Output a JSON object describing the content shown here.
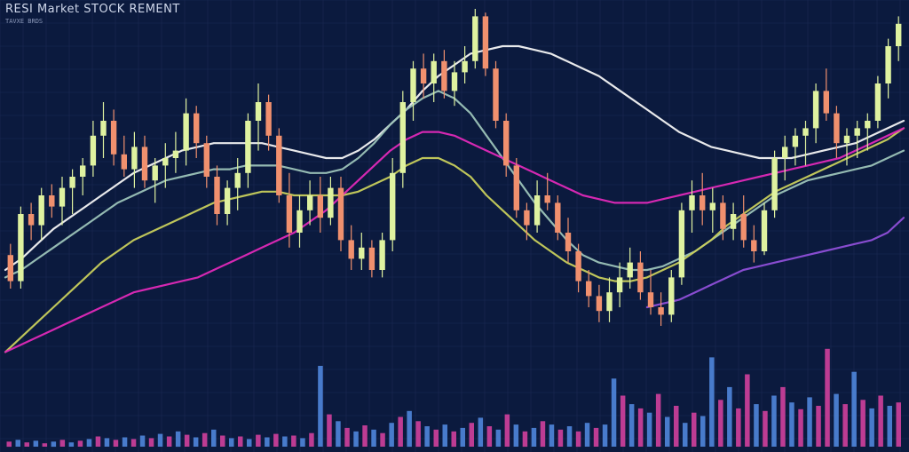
{
  "header": {
    "title": "RESI Market STOCK REMENT",
    "subtitle": "TAVXE BRDS"
  },
  "colors": {
    "background": "#0b1a3e",
    "grid": "#1b2b55",
    "candle_up": "#dff2a0",
    "candle_down": "#f0906e",
    "ma_white": "#f4f4f4",
    "ma_teal": "#2e8fa0",
    "ma_sage": "#9cc3b8",
    "ma_yellow": "#c8cf5c",
    "ma_magenta": "#e029b8",
    "ma_purple": "#8f4fd8",
    "ma_red": "#b01a3e",
    "volume_blue": "#4f86dc",
    "volume_pink": "#d0409c"
  },
  "chart_data": {
    "type": "candlestick",
    "ylim": [
      0,
      100
    ],
    "grid": true,
    "candles": [
      {
        "o": 34,
        "h": 37,
        "l": 25,
        "c": 27
      },
      {
        "o": 27,
        "h": 47,
        "l": 25,
        "c": 45
      },
      {
        "o": 45,
        "h": 48,
        "l": 38,
        "c": 42
      },
      {
        "o": 42,
        "h": 52,
        "l": 38,
        "c": 50
      },
      {
        "o": 50,
        "h": 53,
        "l": 44,
        "c": 47
      },
      {
        "o": 47,
        "h": 55,
        "l": 42,
        "c": 52
      },
      {
        "o": 52,
        "h": 57,
        "l": 45,
        "c": 55
      },
      {
        "o": 55,
        "h": 60,
        "l": 50,
        "c": 58
      },
      {
        "o": 58,
        "h": 70,
        "l": 55,
        "c": 66
      },
      {
        "o": 66,
        "h": 75,
        "l": 60,
        "c": 70
      },
      {
        "o": 70,
        "h": 73,
        "l": 58,
        "c": 61
      },
      {
        "o": 61,
        "h": 66,
        "l": 55,
        "c": 57
      },
      {
        "o": 57,
        "h": 67,
        "l": 52,
        "c": 63
      },
      {
        "o": 63,
        "h": 66,
        "l": 52,
        "c": 54
      },
      {
        "o": 54,
        "h": 60,
        "l": 48,
        "c": 58
      },
      {
        "o": 58,
        "h": 64,
        "l": 52,
        "c": 60
      },
      {
        "o": 60,
        "h": 67,
        "l": 56,
        "c": 62
      },
      {
        "o": 62,
        "h": 76,
        "l": 58,
        "c": 72
      },
      {
        "o": 72,
        "h": 74,
        "l": 60,
        "c": 64
      },
      {
        "o": 64,
        "h": 66,
        "l": 52,
        "c": 55
      },
      {
        "o": 55,
        "h": 58,
        "l": 42,
        "c": 45
      },
      {
        "o": 45,
        "h": 54,
        "l": 42,
        "c": 52
      },
      {
        "o": 52,
        "h": 60,
        "l": 46,
        "c": 56
      },
      {
        "o": 56,
        "h": 72,
        "l": 52,
        "c": 70
      },
      {
        "o": 70,
        "h": 80,
        "l": 62,
        "c": 75
      },
      {
        "o": 75,
        "h": 77,
        "l": 62,
        "c": 66
      },
      {
        "o": 66,
        "h": 68,
        "l": 48,
        "c": 50
      },
      {
        "o": 50,
        "h": 56,
        "l": 36,
        "c": 40
      },
      {
        "o": 40,
        "h": 50,
        "l": 36,
        "c": 46
      },
      {
        "o": 46,
        "h": 54,
        "l": 42,
        "c": 50
      },
      {
        "o": 50,
        "h": 55,
        "l": 40,
        "c": 44
      },
      {
        "o": 44,
        "h": 55,
        "l": 42,
        "c": 52
      },
      {
        "o": 52,
        "h": 55,
        "l": 35,
        "c": 38
      },
      {
        "o": 38,
        "h": 42,
        "l": 30,
        "c": 33
      },
      {
        "o": 33,
        "h": 40,
        "l": 30,
        "c": 36
      },
      {
        "o": 36,
        "h": 38,
        "l": 28,
        "c": 30
      },
      {
        "o": 30,
        "h": 40,
        "l": 28,
        "c": 38
      },
      {
        "o": 38,
        "h": 60,
        "l": 35,
        "c": 56
      },
      {
        "o": 56,
        "h": 78,
        "l": 52,
        "c": 75
      },
      {
        "o": 75,
        "h": 86,
        "l": 70,
        "c": 84
      },
      {
        "o": 84,
        "h": 88,
        "l": 76,
        "c": 80
      },
      {
        "o": 80,
        "h": 88,
        "l": 75,
        "c": 86
      },
      {
        "o": 86,
        "h": 89,
        "l": 76,
        "c": 78
      },
      {
        "o": 78,
        "h": 86,
        "l": 74,
        "c": 83
      },
      {
        "o": 83,
        "h": 90,
        "l": 80,
        "c": 86
      },
      {
        "o": 86,
        "h": 100,
        "l": 84,
        "c": 98
      },
      {
        "o": 98,
        "h": 99,
        "l": 82,
        "c": 84
      },
      {
        "o": 84,
        "h": 86,
        "l": 68,
        "c": 70
      },
      {
        "o": 70,
        "h": 72,
        "l": 55,
        "c": 58
      },
      {
        "o": 58,
        "h": 60,
        "l": 44,
        "c": 46
      },
      {
        "o": 46,
        "h": 48,
        "l": 38,
        "c": 42
      },
      {
        "o": 42,
        "h": 54,
        "l": 40,
        "c": 50
      },
      {
        "o": 50,
        "h": 56,
        "l": 46,
        "c": 48
      },
      {
        "o": 48,
        "h": 50,
        "l": 38,
        "c": 40
      },
      {
        "o": 40,
        "h": 44,
        "l": 32,
        "c": 35
      },
      {
        "o": 35,
        "h": 37,
        "l": 24,
        "c": 27
      },
      {
        "o": 27,
        "h": 30,
        "l": 20,
        "c": 23
      },
      {
        "o": 23,
        "h": 26,
        "l": 16,
        "c": 19
      },
      {
        "o": 19,
        "h": 28,
        "l": 16,
        "c": 24
      },
      {
        "o": 24,
        "h": 32,
        "l": 20,
        "c": 28
      },
      {
        "o": 28,
        "h": 36,
        "l": 25,
        "c": 32
      },
      {
        "o": 32,
        "h": 35,
        "l": 22,
        "c": 24
      },
      {
        "o": 24,
        "h": 30,
        "l": 18,
        "c": 20
      },
      {
        "o": 20,
        "h": 24,
        "l": 15,
        "c": 18
      },
      {
        "o": 18,
        "h": 30,
        "l": 16,
        "c": 28
      },
      {
        "o": 28,
        "h": 48,
        "l": 26,
        "c": 46
      },
      {
        "o": 46,
        "h": 54,
        "l": 40,
        "c": 50
      },
      {
        "o": 50,
        "h": 56,
        "l": 42,
        "c": 46
      },
      {
        "o": 46,
        "h": 52,
        "l": 40,
        "c": 48
      },
      {
        "o": 48,
        "h": 50,
        "l": 38,
        "c": 41
      },
      {
        "o": 41,
        "h": 48,
        "l": 38,
        "c": 45
      },
      {
        "o": 45,
        "h": 50,
        "l": 36,
        "c": 38
      },
      {
        "o": 38,
        "h": 42,
        "l": 32,
        "c": 35
      },
      {
        "o": 35,
        "h": 48,
        "l": 34,
        "c": 46
      },
      {
        "o": 46,
        "h": 62,
        "l": 44,
        "c": 60
      },
      {
        "o": 60,
        "h": 66,
        "l": 54,
        "c": 63
      },
      {
        "o": 63,
        "h": 68,
        "l": 58,
        "c": 66
      },
      {
        "o": 66,
        "h": 70,
        "l": 58,
        "c": 68
      },
      {
        "o": 68,
        "h": 80,
        "l": 64,
        "c": 78
      },
      {
        "o": 78,
        "h": 84,
        "l": 70,
        "c": 72
      },
      {
        "o": 72,
        "h": 74,
        "l": 60,
        "c": 64
      },
      {
        "o": 64,
        "h": 68,
        "l": 58,
        "c": 66
      },
      {
        "o": 66,
        "h": 70,
        "l": 60,
        "c": 68
      },
      {
        "o": 68,
        "h": 72,
        "l": 62,
        "c": 70
      },
      {
        "o": 70,
        "h": 82,
        "l": 68,
        "c": 80
      },
      {
        "o": 80,
        "h": 92,
        "l": 76,
        "c": 90
      },
      {
        "o": 90,
        "h": 98,
        "l": 86,
        "c": 96
      }
    ],
    "moving_averages": [
      {
        "color_key": "ma_white",
        "values": [
          30,
          33,
          37,
          41,
          44,
          47,
          50,
          53,
          56,
          58,
          60,
          62,
          63,
          64,
          64,
          64,
          64,
          63,
          62,
          61,
          60,
          60,
          62,
          65,
          69,
          73,
          78,
          82,
          85,
          88,
          89,
          90,
          90,
          89,
          88,
          86,
          84,
          82,
          79,
          76,
          73,
          70,
          67,
          65,
          63,
          62,
          61,
          60,
          60,
          60,
          61,
          62,
          63,
          64,
          66,
          68,
          70
        ]
      },
      {
        "color_key": "ma_sage",
        "values": [
          28,
          30,
          33,
          36,
          39,
          42,
          45,
          48,
          50,
          52,
          54,
          55,
          56,
          57,
          57,
          58,
          58,
          58,
          57,
          56,
          56,
          57,
          60,
          64,
          69,
          73,
          76,
          78,
          76,
          72,
          66,
          60,
          54,
          48,
          43,
          38,
          34,
          32,
          31,
          30,
          30,
          31,
          33,
          35,
          38,
          41,
          44,
          47,
          50,
          52,
          54,
          55,
          56,
          57,
          58,
          60,
          62
        ]
      },
      {
        "color_key": "ma_yellow",
        "values": [
          8,
          12,
          16,
          20,
          24,
          28,
          32,
          35,
          38,
          40,
          42,
          44,
          46,
          48,
          49,
          50,
          51,
          51,
          50,
          50,
          50,
          50,
          51,
          53,
          55,
          58,
          60,
          60,
          58,
          55,
          50,
          46,
          42,
          38,
          35,
          32,
          30,
          28,
          27,
          27,
          28,
          30,
          32,
          35,
          38,
          42,
          45,
          48,
          51,
          53,
          55,
          57,
          59,
          61,
          63,
          65,
          68
        ]
      },
      {
        "color_key": "ma_magenta",
        "values": [
          8,
          10,
          12,
          14,
          16,
          18,
          20,
          22,
          24,
          25,
          26,
          27,
          28,
          30,
          32,
          34,
          36,
          38,
          40,
          43,
          46,
          50,
          54,
          58,
          62,
          65,
          67,
          67,
          66,
          64,
          62,
          60,
          58,
          56,
          54,
          52,
          50,
          49,
          48,
          48,
          48,
          49,
          50,
          51,
          52,
          53,
          54,
          55,
          56,
          57,
          58,
          59,
          60,
          62,
          64,
          66,
          68
        ]
      },
      {
        "color_key": "ma_purple",
        "values": [
          null,
          null,
          null,
          null,
          null,
          null,
          null,
          null,
          null,
          null,
          null,
          null,
          null,
          null,
          null,
          null,
          null,
          null,
          null,
          null,
          null,
          null,
          null,
          null,
          null,
          null,
          null,
          null,
          null,
          null,
          null,
          null,
          null,
          null,
          null,
          null,
          null,
          null,
          null,
          null,
          20,
          21,
          22,
          24,
          26,
          28,
          30,
          31,
          32,
          33,
          34,
          35,
          36,
          37,
          38,
          40,
          44
        ]
      }
    ],
    "volume": [
      {
        "v": 6,
        "c": "volume_pink"
      },
      {
        "v": 8,
        "c": "volume_blue"
      },
      {
        "v": 5,
        "c": "volume_pink"
      },
      {
        "v": 7,
        "c": "volume_blue"
      },
      {
        "v": 4,
        "c": "volume_pink"
      },
      {
        "v": 6,
        "c": "volume_blue"
      },
      {
        "v": 8,
        "c": "volume_pink"
      },
      {
        "v": 5,
        "c": "volume_blue"
      },
      {
        "v": 7,
        "c": "volume_pink"
      },
      {
        "v": 9,
        "c": "volume_blue"
      },
      {
        "v": 12,
        "c": "volume_pink"
      },
      {
        "v": 10,
        "c": "volume_blue"
      },
      {
        "v": 8,
        "c": "volume_pink"
      },
      {
        "v": 11,
        "c": "volume_blue"
      },
      {
        "v": 9,
        "c": "volume_pink"
      },
      {
        "v": 13,
        "c": "volume_blue"
      },
      {
        "v": 10,
        "c": "volume_pink"
      },
      {
        "v": 15,
        "c": "volume_blue"
      },
      {
        "v": 12,
        "c": "volume_pink"
      },
      {
        "v": 18,
        "c": "volume_blue"
      },
      {
        "v": 14,
        "c": "volume_pink"
      },
      {
        "v": 11,
        "c": "volume_blue"
      },
      {
        "v": 16,
        "c": "volume_pink"
      },
      {
        "v": 20,
        "c": "volume_blue"
      },
      {
        "v": 13,
        "c": "volume_pink"
      },
      {
        "v": 10,
        "c": "volume_blue"
      },
      {
        "v": 12,
        "c": "volume_pink"
      },
      {
        "v": 9,
        "c": "volume_blue"
      },
      {
        "v": 14,
        "c": "volume_pink"
      },
      {
        "v": 11,
        "c": "volume_blue"
      },
      {
        "v": 15,
        "c": "volume_pink"
      },
      {
        "v": 12,
        "c": "volume_blue"
      },
      {
        "v": 13,
        "c": "volume_pink"
      },
      {
        "v": 10,
        "c": "volume_blue"
      },
      {
        "v": 16,
        "c": "volume_pink"
      },
      {
        "v": 95,
        "c": "volume_blue"
      },
      {
        "v": 38,
        "c": "volume_pink"
      },
      {
        "v": 30,
        "c": "volume_blue"
      },
      {
        "v": 22,
        "c": "volume_pink"
      },
      {
        "v": 18,
        "c": "volume_blue"
      },
      {
        "v": 25,
        "c": "volume_pink"
      },
      {
        "v": 20,
        "c": "volume_blue"
      },
      {
        "v": 16,
        "c": "volume_pink"
      },
      {
        "v": 28,
        "c": "volume_blue"
      },
      {
        "v": 35,
        "c": "volume_pink"
      },
      {
        "v": 42,
        "c": "volume_blue"
      },
      {
        "v": 30,
        "c": "volume_pink"
      },
      {
        "v": 24,
        "c": "volume_blue"
      },
      {
        "v": 20,
        "c": "volume_pink"
      },
      {
        "v": 26,
        "c": "volume_blue"
      },
      {
        "v": 18,
        "c": "volume_pink"
      },
      {
        "v": 22,
        "c": "volume_blue"
      },
      {
        "v": 28,
        "c": "volume_pink"
      },
      {
        "v": 34,
        "c": "volume_blue"
      },
      {
        "v": 24,
        "c": "volume_pink"
      },
      {
        "v": 20,
        "c": "volume_blue"
      },
      {
        "v": 38,
        "c": "volume_pink"
      },
      {
        "v": 26,
        "c": "volume_blue"
      },
      {
        "v": 18,
        "c": "volume_pink"
      },
      {
        "v": 22,
        "c": "volume_blue"
      },
      {
        "v": 30,
        "c": "volume_pink"
      },
      {
        "v": 26,
        "c": "volume_blue"
      },
      {
        "v": 20,
        "c": "volume_pink"
      },
      {
        "v": 24,
        "c": "volume_blue"
      },
      {
        "v": 18,
        "c": "volume_pink"
      },
      {
        "v": 28,
        "c": "volume_blue"
      },
      {
        "v": 22,
        "c": "volume_pink"
      },
      {
        "v": 26,
        "c": "volume_blue"
      },
      {
        "v": 80,
        "c": "volume_blue"
      },
      {
        "v": 60,
        "c": "volume_pink"
      },
      {
        "v": 50,
        "c": "volume_blue"
      },
      {
        "v": 45,
        "c": "volume_pink"
      },
      {
        "v": 40,
        "c": "volume_blue"
      },
      {
        "v": 62,
        "c": "volume_pink"
      },
      {
        "v": 35,
        "c": "volume_blue"
      },
      {
        "v": 48,
        "c": "volume_pink"
      },
      {
        "v": 28,
        "c": "volume_blue"
      },
      {
        "v": 40,
        "c": "volume_pink"
      },
      {
        "v": 36,
        "c": "volume_blue"
      },
      {
        "v": 105,
        "c": "volume_blue"
      },
      {
        "v": 55,
        "c": "volume_pink"
      },
      {
        "v": 70,
        "c": "volume_blue"
      },
      {
        "v": 45,
        "c": "volume_pink"
      },
      {
        "v": 85,
        "c": "volume_pink"
      },
      {
        "v": 50,
        "c": "volume_blue"
      },
      {
        "v": 42,
        "c": "volume_pink"
      },
      {
        "v": 60,
        "c": "volume_blue"
      },
      {
        "v": 70,
        "c": "volume_pink"
      },
      {
        "v": 52,
        "c": "volume_blue"
      },
      {
        "v": 44,
        "c": "volume_pink"
      },
      {
        "v": 58,
        "c": "volume_blue"
      },
      {
        "v": 48,
        "c": "volume_pink"
      },
      {
        "v": 115,
        "c": "volume_pink"
      },
      {
        "v": 62,
        "c": "volume_blue"
      },
      {
        "v": 50,
        "c": "volume_pink"
      },
      {
        "v": 88,
        "c": "volume_blue"
      },
      {
        "v": 55,
        "c": "volume_pink"
      },
      {
        "v": 45,
        "c": "volume_blue"
      },
      {
        "v": 60,
        "c": "volume_pink"
      },
      {
        "v": 48,
        "c": "volume_blue"
      },
      {
        "v": 52,
        "c": "volume_pink"
      }
    ]
  }
}
